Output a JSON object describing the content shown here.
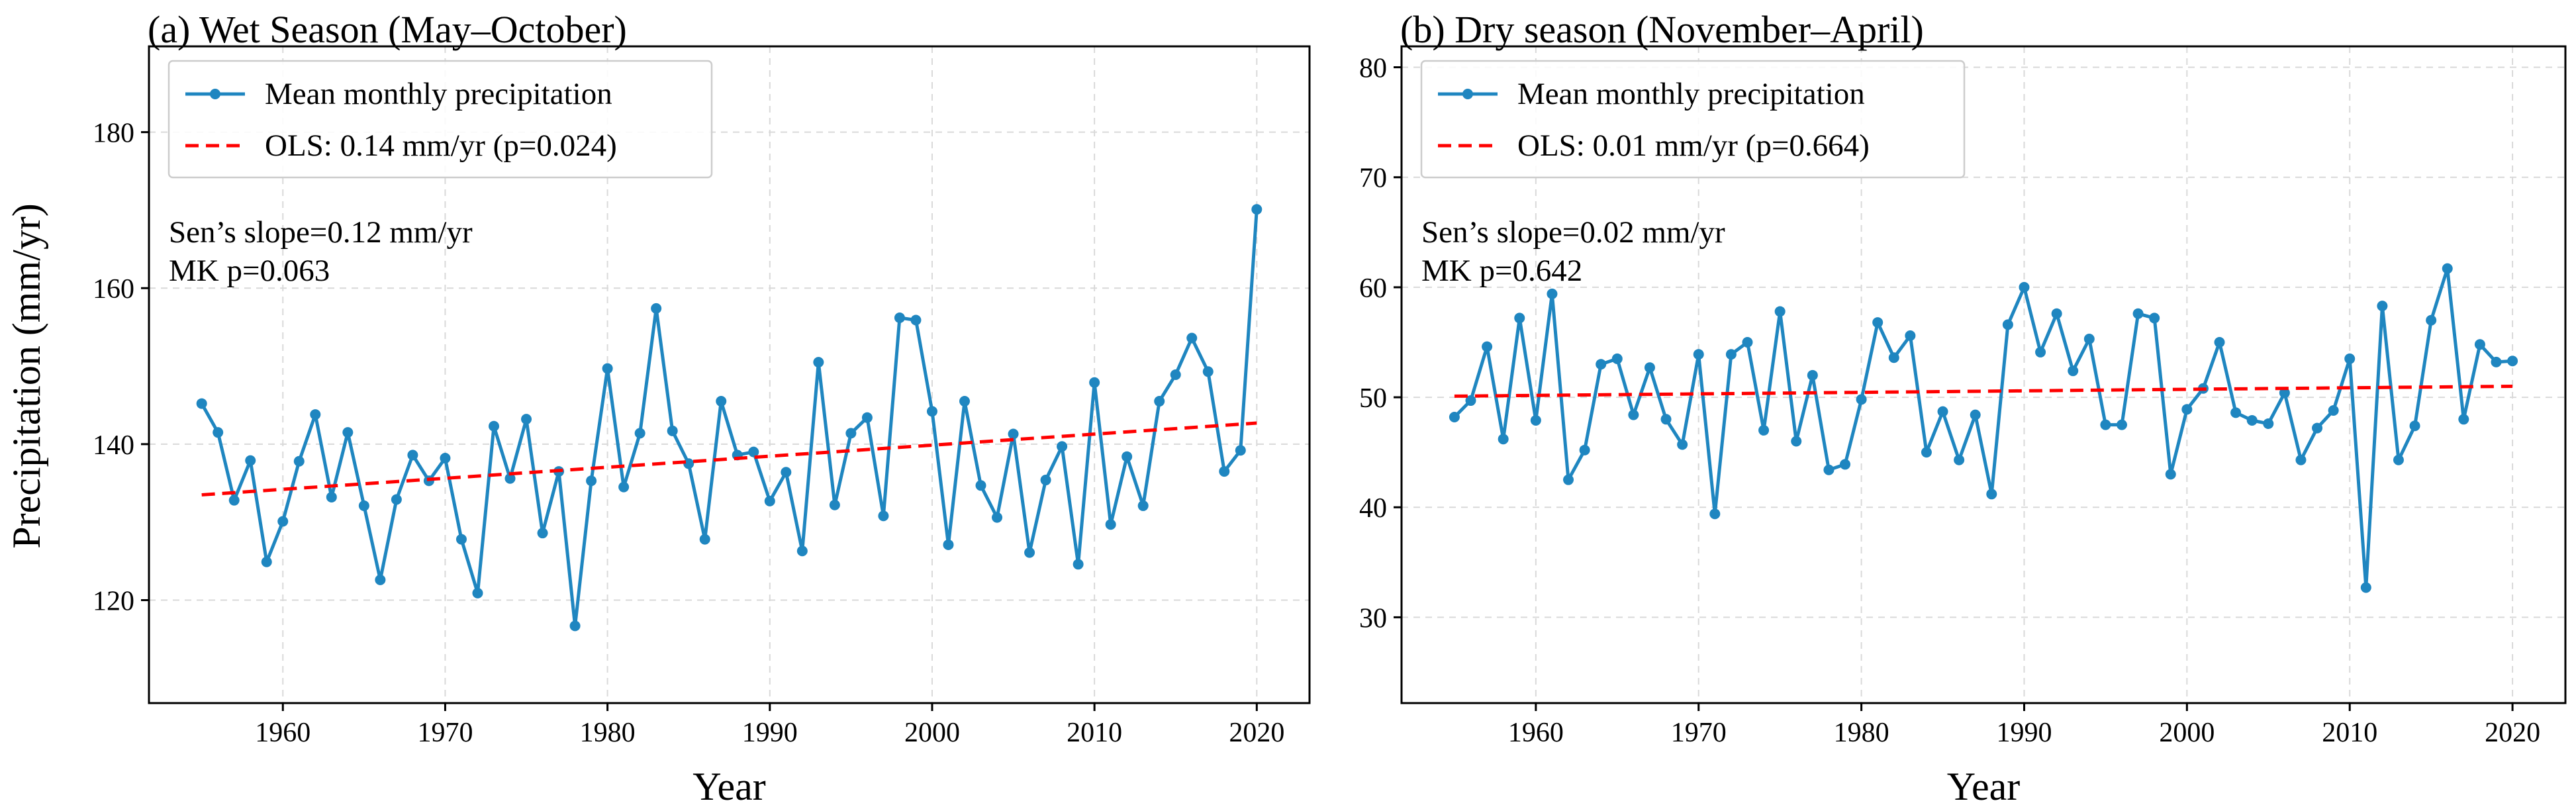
{
  "figure": {
    "ylabel": "Precipitation (mm/yr)"
  },
  "chart_data": [
    {
      "type": "line",
      "title": "(a) Wet Season (May–October)",
      "xlabel": "Year",
      "ylabel": "Precipitation (mm/yr)",
      "xlim": [
        1951.75,
        2023.25
      ],
      "ylim": [
        106.8,
        191
      ],
      "xticks": [
        1960,
        1970,
        1980,
        1990,
        2000,
        2010,
        2020
      ],
      "yticks": [
        120,
        140,
        160,
        180
      ],
      "grid": true,
      "legend_position": "top-left",
      "x": [
        1955,
        1956,
        1957,
        1958,
        1959,
        1960,
        1961,
        1962,
        1963,
        1964,
        1965,
        1966,
        1967,
        1968,
        1969,
        1970,
        1971,
        1972,
        1973,
        1974,
        1975,
        1976,
        1977,
        1978,
        1979,
        1980,
        1981,
        1982,
        1983,
        1984,
        1985,
        1986,
        1987,
        1988,
        1989,
        1990,
        1991,
        1992,
        1993,
        1994,
        1995,
        1996,
        1997,
        1998,
        1999,
        2000,
        2001,
        2002,
        2003,
        2004,
        2005,
        2006,
        2007,
        2008,
        2009,
        2010,
        2011,
        2012,
        2013,
        2014,
        2015,
        2016,
        2017,
        2018,
        2019,
        2020
      ],
      "series": [
        {
          "name": "Mean monthly precipitation",
          "color": "#1f86c0",
          "values": [
            145.2,
            141.5,
            132.8,
            137.9,
            124.9,
            130.1,
            137.8,
            143.8,
            133.2,
            141.5,
            132.1,
            122.6,
            132.9,
            138.6,
            135.3,
            138.2,
            127.8,
            120.9,
            142.3,
            135.6,
            143.2,
            128.6,
            136.5,
            116.7,
            135.3,
            149.7,
            134.5,
            141.4,
            157.4,
            141.7,
            137.5,
            127.8,
            145.5,
            138.6,
            139.0,
            132.7,
            136.4,
            126.3,
            150.5,
            132.2,
            141.4,
            143.4,
            130.8,
            156.2,
            155.9,
            144.2,
            127.1,
            145.5,
            134.7,
            130.6,
            141.3,
            126.1,
            135.4,
            139.7,
            124.6,
            147.9,
            129.7,
            138.4,
            132.1,
            145.5,
            148.9,
            153.6,
            149.3,
            136.5,
            139.2,
            170.1
          ]
        },
        {
          "name": "OLS: 0.14 mm/yr (p=0.024)",
          "color": "#ff0000",
          "style": "dashed",
          "x": [
            1955,
            2020
          ],
          "values": [
            133.5,
            142.7
          ]
        }
      ],
      "annotations": [
        "Sen’s slope=0.12 mm/yr",
        "MK p=0.063"
      ]
    },
    {
      "type": "line",
      "title": "(b) Dry season (November–April)",
      "xlabel": "Year",
      "ylabel": "",
      "xlim": [
        1951.75,
        2023.25
      ],
      "ylim": [
        22.2,
        81.9
      ],
      "xticks": [
        1960,
        1970,
        1980,
        1990,
        2000,
        2010,
        2020
      ],
      "yticks": [
        30,
        40,
        50,
        60,
        70,
        80
      ],
      "grid": true,
      "legend_position": "top-left",
      "x": [
        1955,
        1956,
        1957,
        1958,
        1959,
        1960,
        1961,
        1962,
        1963,
        1964,
        1965,
        1966,
        1967,
        1968,
        1969,
        1970,
        1971,
        1972,
        1973,
        1974,
        1975,
        1976,
        1977,
        1978,
        1979,
        1980,
        1981,
        1982,
        1983,
        1984,
        1985,
        1986,
        1987,
        1988,
        1989,
        1990,
        1991,
        1992,
        1993,
        1994,
        1995,
        1996,
        1997,
        1998,
        1999,
        2000,
        2001,
        2002,
        2003,
        2004,
        2005,
        2006,
        2007,
        2008,
        2009,
        2010,
        2011,
        2012,
        2013,
        2014,
        2015,
        2016,
        2017,
        2018,
        2019,
        2020
      ],
      "series": [
        {
          "name": "Mean monthly precipitation",
          "color": "#1f86c0",
          "values": [
            48.2,
            49.7,
            54.6,
            46.2,
            57.2,
            47.9,
            59.4,
            42.5,
            45.2,
            53.0,
            53.5,
            48.4,
            52.7,
            48.0,
            45.7,
            53.9,
            39.4,
            53.9,
            55.0,
            47.0,
            57.8,
            46.0,
            52.0,
            43.4,
            43.9,
            49.8,
            56.8,
            53.6,
            55.6,
            45.0,
            48.7,
            44.3,
            48.4,
            41.2,
            56.6,
            60.0,
            54.1,
            57.6,
            52.4,
            55.3,
            47.5,
            47.5,
            57.6,
            57.2,
            43.0,
            48.9,
            50.8,
            55.0,
            48.6,
            47.9,
            47.6,
            50.4,
            44.3,
            47.2,
            48.8,
            53.5,
            32.7,
            58.3,
            44.3,
            47.4,
            57.0,
            61.7,
            48.0,
            54.8,
            53.2,
            53.3
          ]
        },
        {
          "name": "OLS: 0.01 mm/yr (p=0.664)",
          "color": "#ff0000",
          "style": "dashed",
          "x": [
            1955,
            2020
          ],
          "values": [
            50.1,
            51.0
          ]
        }
      ],
      "annotations": [
        "Sen’s slope=0.02 mm/yr",
        "MK p=0.642"
      ]
    }
  ]
}
